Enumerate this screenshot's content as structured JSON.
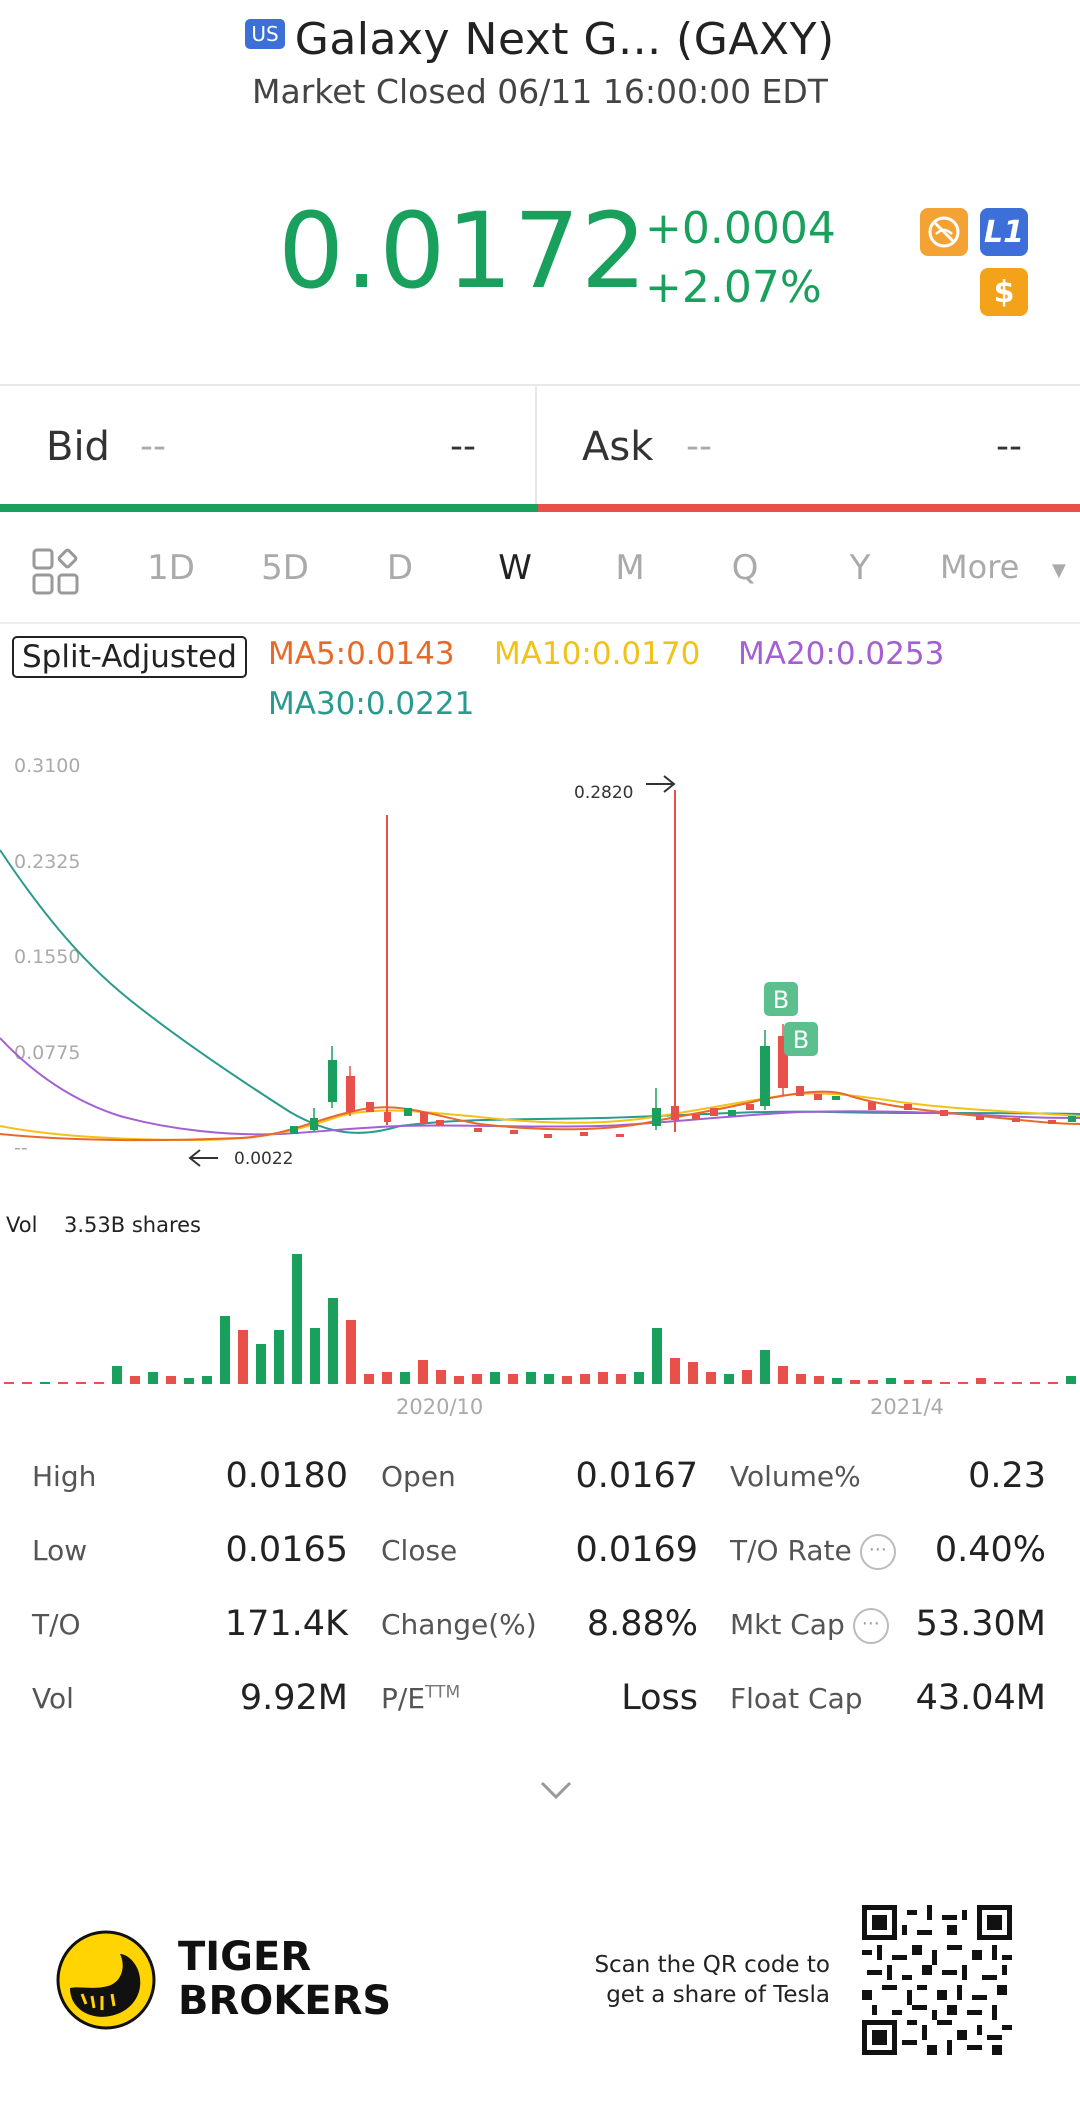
{
  "header": {
    "market_badge": "US",
    "title": "Galaxy Next G... (GAXY)",
    "status": "Market Closed 06/11 16:00:00 EDT"
  },
  "quote": {
    "price": "0.0172",
    "change": "+0.0004",
    "change_pct": "+2.07%",
    "up_color": "#18a05c",
    "down_color": "#e8514a",
    "badges": [
      "no-short-icon",
      "L1",
      "$"
    ]
  },
  "bidask": {
    "bid_label": "Bid",
    "bid_price": "--",
    "bid_size": "--",
    "ask_label": "Ask",
    "ask_price": "--",
    "ask_size": "--"
  },
  "tabs": {
    "items": [
      "1D",
      "5D",
      "D",
      "W",
      "M",
      "Q",
      "Y"
    ],
    "active": "W",
    "more": "More"
  },
  "legend": {
    "split": "Split-Adjusted",
    "ma5": "MA5:0.0143",
    "ma10": "MA10:0.0170",
    "ma20": "MA20:0.0253",
    "ma30": "MA30:0.0221"
  },
  "chart_data": {
    "type": "line",
    "title": "",
    "y_ticks": [
      "0.3100",
      "0.2325",
      "0.1550",
      "0.0775",
      "--"
    ],
    "ylim": [
      0,
      0.31
    ],
    "annotations": {
      "high_label": "0.2820",
      "low_label": "0.0022",
      "markers": [
        "B",
        "B"
      ]
    },
    "vol_label": "Vol",
    "vol_value": "3.53B shares",
    "x_ticks": [
      "2020/10",
      "2021/4"
    ],
    "series": [
      {
        "name": "MA5",
        "color": "#e86a2a"
      },
      {
        "name": "MA10",
        "color": "#f2c21a"
      },
      {
        "name": "MA20",
        "color": "#a460d2"
      },
      {
        "name": "MA30",
        "color": "#2a9a8e"
      }
    ]
  },
  "stats": {
    "rows": [
      [
        {
          "label": "High",
          "value": "0.0180"
        },
        {
          "label": "Open",
          "value": "0.0167"
        },
        {
          "label": "Volume%",
          "value": "0.23"
        }
      ],
      [
        {
          "label": "Low",
          "value": "0.0165"
        },
        {
          "label": "Close",
          "value": "0.0169"
        },
        {
          "label": "T/O Rate",
          "value": "0.40%"
        }
      ],
      [
        {
          "label": "T/O",
          "value": "171.4K"
        },
        {
          "label": "Change(%)",
          "value": "8.88%"
        },
        {
          "label": "Mkt Cap",
          "value": "53.30M"
        }
      ],
      [
        {
          "label": "Vol",
          "value": "9.92M"
        },
        {
          "label": "P/E",
          "value": "Loss"
        },
        {
          "label": "Float Cap",
          "value": "43.04M"
        }
      ]
    ],
    "pe_superscript": "TTM"
  },
  "footer": {
    "brand_line1": "TIGER",
    "brand_line2": "BROKERS",
    "scan_line1": "Scan the QR code to",
    "scan_line2": "get a share of Tesla"
  }
}
